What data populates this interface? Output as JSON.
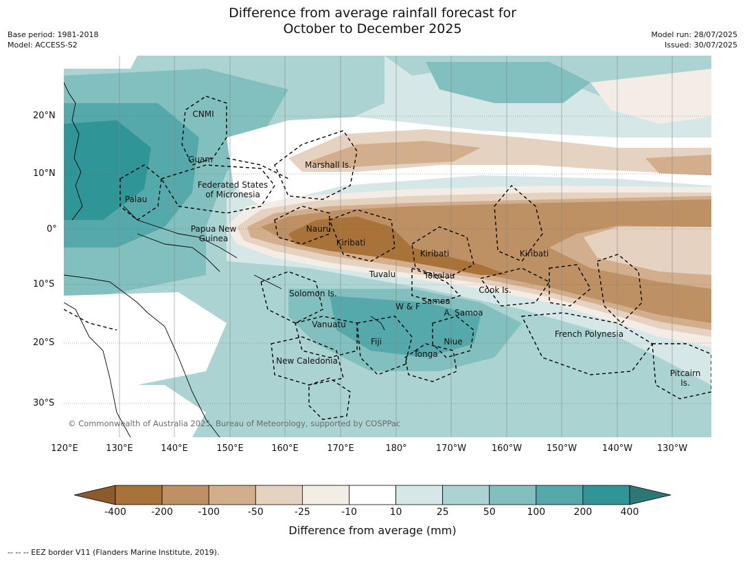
{
  "title_line1": "Difference from average rainfall forecast for",
  "title_line2": "October to December 2025",
  "meta": {
    "base_period": "Base period: 1981-2018",
    "model": "Model: ACCESS-S2",
    "model_run": "Model run: 28/07/2025",
    "issued": "Issued: 30/07/2025"
  },
  "lat_labels": [
    "20°N",
    "10°N",
    "0°",
    "10°S",
    "20°S",
    "30°S"
  ],
  "lon_labels": [
    "120°E",
    "130°E",
    "140°E",
    "150°E",
    "160°E",
    "170°E",
    "180°",
    "170°W",
    "160°W",
    "150°W",
    "140°W",
    "130°W"
  ],
  "places": {
    "cnmi": "CNMI",
    "guam": "Guam",
    "marshall": "Marshall Is.",
    "fsm1": "Federated States",
    "fsm2": "of Micronesia",
    "palau": "Palau",
    "nauru": "Nauru",
    "kiribati_w": "Kiribati",
    "kiribati_c": "Kiribati",
    "kiribati_e": "Kiribati",
    "png1": "Papua New",
    "png2": "Guinea",
    "tuvalu": "Tuvalu",
    "tokelau": "Tokelau",
    "cook": "Cook Is.",
    "solomon": "Solomon Is.",
    "samoa": "Samoa",
    "wf": "W & F",
    "asamoa": "A. Samoa",
    "vanuatu": "Vanuatu",
    "fiji": "Fiji",
    "niue": "Niue",
    "tonga": "Tonga",
    "frenchpoly": "French Polynesia",
    "newcal": "New Caledonia",
    "pitcairn1": "Pitcairn",
    "pitcairn2": "Is."
  },
  "copyright": "© Commonwealth of Australia 2025, Bureau of Meteorology, supported by COSPPac",
  "colorbar": {
    "ticks": [
      "-400",
      "-200",
      "-100",
      "-50",
      "-25",
      "-10",
      "10",
      "25",
      "50",
      "100",
      "200",
      "400"
    ],
    "colors": [
      "#8c5a2c",
      "#a87238",
      "#be9164",
      "#d3ae8c",
      "#e6d2c0",
      "#f3ede6",
      "#ffffff",
      "#d5e8e7",
      "#abd3d2",
      "#82bfbf",
      "#55a9aa",
      "#2f9596",
      "#2d7877"
    ],
    "title": "Difference from average (mm)"
  },
  "footer": "-- -- -- EEZ border V11 (Flanders Marine Institute, 2019)."
}
